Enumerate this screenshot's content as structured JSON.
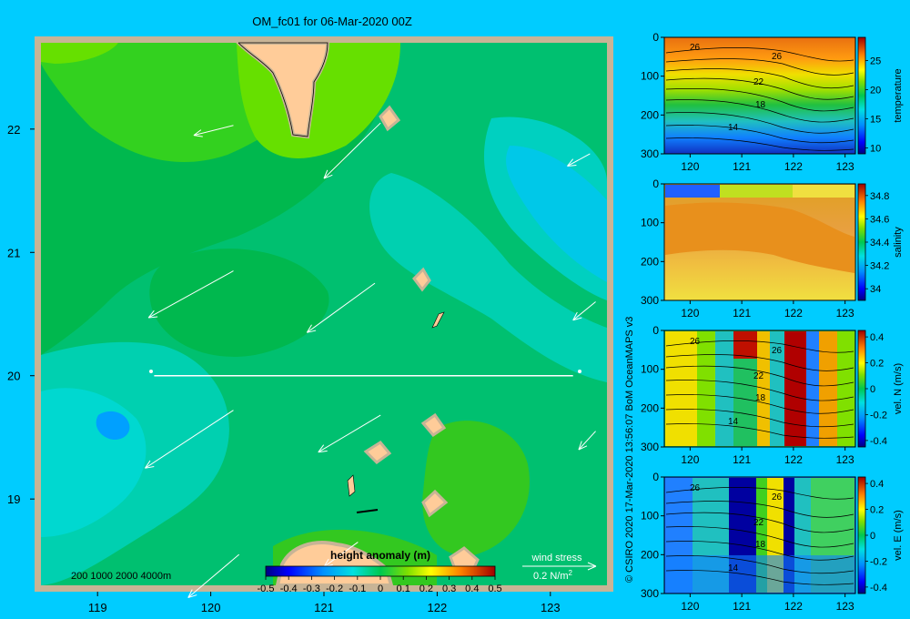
{
  "title": "OM_fc01 for 06-Mar-2020 00Z",
  "credit": "© CSIRO 2020  17-Mar-2020 13:56:07 BoM OceanMAPS v3",
  "colors": {
    "background": "#00ccff",
    "land": "#ffcc99",
    "shelf": "#c8b496",
    "frame": "#c8b496",
    "transect": "#ffffff"
  },
  "chart_data": [
    {
      "type": "heatmap",
      "name": "map",
      "x_ticks": [
        "119",
        "120",
        "121",
        "122",
        "123"
      ],
      "y_ticks": [
        "22",
        "21",
        "20",
        "19"
      ],
      "xlim": [
        118.5,
        123.5
      ],
      "ylim": [
        18.3,
        22.7
      ],
      "colorbar": {
        "label": "height anomaly (m)",
        "ticks": [
          "-0.5",
          "-0.4",
          "-0.3",
          "-0.2",
          "-0.1",
          "0",
          "0.1",
          "0.2",
          "0.3",
          "0.4",
          "0.5"
        ],
        "range": [
          -0.5,
          0.5
        ]
      },
      "depth_contours": [
        "200",
        "1000",
        "2000",
        "4000m"
      ],
      "wind_stress_label": "wind stress",
      "wind_stress_scale": "0.2 N/m",
      "wind_stress_scale_sup": "2",
      "transect": {
        "lon": [
          119.5,
          123.2
        ],
        "lat": 20.0
      },
      "wind_vectors": [
        {
          "lon": 120.2,
          "lat": 22.03,
          "dlon": -0.35,
          "dlat": -0.08
        },
        {
          "lon": 121.5,
          "lat": 22.05,
          "dlon": -0.5,
          "dlat": -0.45
        },
        {
          "lon": 123.35,
          "lat": 21.8,
          "dlon": -0.2,
          "dlat": -0.1
        },
        {
          "lon": 120.2,
          "lat": 20.85,
          "dlon": -0.75,
          "dlat": -0.38
        },
        {
          "lon": 121.45,
          "lat": 20.75,
          "dlon": -0.6,
          "dlat": -0.4
        },
        {
          "lon": 123.4,
          "lat": 20.6,
          "dlon": -0.2,
          "dlat": -0.15
        },
        {
          "lon": 120.2,
          "lat": 19.72,
          "dlon": -0.78,
          "dlat": -0.47
        },
        {
          "lon": 121.5,
          "lat": 19.68,
          "dlon": -0.55,
          "dlat": -0.3
        },
        {
          "lon": 123.4,
          "lat": 19.55,
          "dlon": -0.15,
          "dlat": -0.15
        },
        {
          "lon": 120.25,
          "lat": 18.55,
          "dlon": -0.45,
          "dlat": -0.35
        },
        {
          "lon": 121.3,
          "lat": 18.65,
          "dlon": -0.3,
          "dlat": -0.2
        }
      ]
    },
    {
      "type": "heatmap",
      "name": "temperature",
      "label": "temperature",
      "x_ticks": [
        "120",
        "121",
        "122",
        "123"
      ],
      "y_ticks": [
        "0",
        "100",
        "200",
        "300"
      ],
      "xlim": [
        119.5,
        123.2
      ],
      "ylim": [
        0,
        300
      ],
      "colorbar_ticks": [
        "25",
        "20",
        "15",
        "10"
      ],
      "colorbar_range": [
        9,
        29
      ],
      "contour_labels": [
        "26",
        "26",
        "22",
        "18",
        "14"
      ]
    },
    {
      "type": "heatmap",
      "name": "salinity",
      "label": "salinity",
      "x_ticks": [
        "120",
        "121",
        "122",
        "123"
      ],
      "y_ticks": [
        "0",
        "100",
        "200",
        "300"
      ],
      "xlim": [
        119.5,
        123.2
      ],
      "ylim": [
        0,
        300
      ],
      "colorbar_ticks": [
        "34.8",
        "34.6",
        "34.4",
        "34.2",
        "34"
      ],
      "colorbar_range": [
        33.9,
        34.9
      ]
    },
    {
      "type": "heatmap",
      "name": "vel-n",
      "label": "vel. N (m/s)",
      "x_ticks": [
        "120",
        "121",
        "122",
        "123"
      ],
      "y_ticks": [
        "0",
        "100",
        "200",
        "300"
      ],
      "xlim": [
        119.5,
        123.2
      ],
      "ylim": [
        0,
        300
      ],
      "colorbar_ticks": [
        "0.4",
        "0.2",
        "0",
        "-0.2",
        "-0.4"
      ],
      "colorbar_range": [
        -0.45,
        0.45
      ],
      "contour_labels": [
        "26",
        "26",
        "22",
        "18",
        "14"
      ]
    },
    {
      "type": "heatmap",
      "name": "vel-e",
      "label": "vel. E (m/s)",
      "x_ticks": [
        "120",
        "121",
        "122",
        "123"
      ],
      "y_ticks": [
        "0",
        "100",
        "200",
        "300"
      ],
      "xlim": [
        119.5,
        123.2
      ],
      "ylim": [
        0,
        300
      ],
      "colorbar_ticks": [
        "0.4",
        "0.2",
        "0",
        "-0.2",
        "-0.4"
      ],
      "colorbar_range": [
        -0.45,
        0.45
      ],
      "contour_labels": [
        "26",
        "26",
        "22",
        "18",
        "14"
      ]
    }
  ]
}
